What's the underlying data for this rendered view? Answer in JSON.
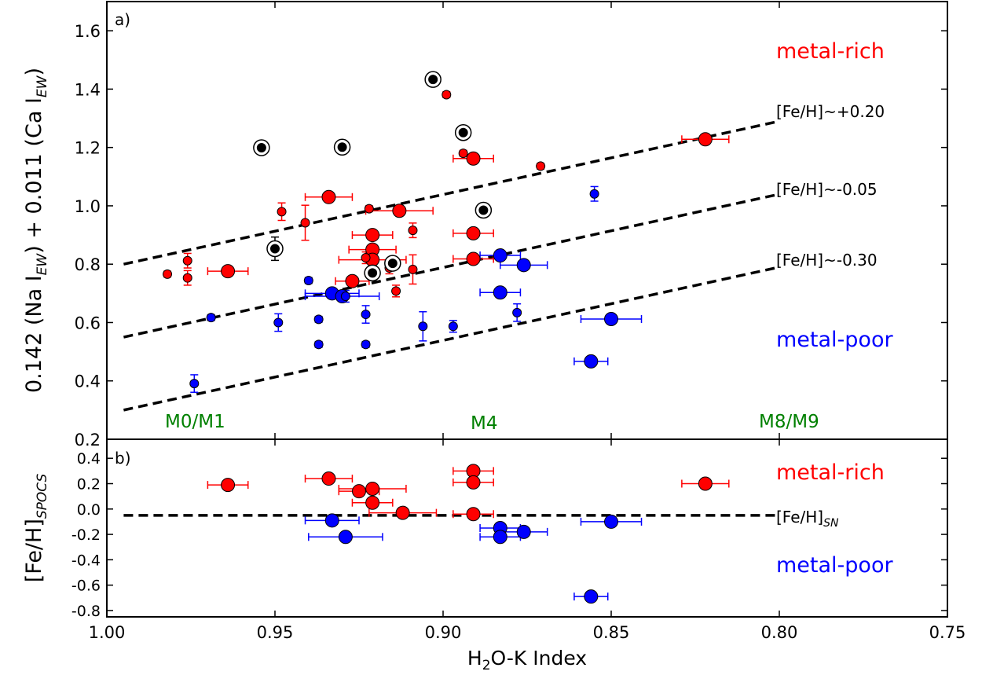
{
  "chart_data": [
    {
      "type": "scatter",
      "panel_label": "a)",
      "title": "",
      "xlabel": "",
      "ylabel": "0.142 (Na I_EW) + 0.011 (Ca I_EW)",
      "ylabel_parts": {
        "a": "0.142 (Na I",
        "a_sub": "EW",
        "b": ") + 0.011 (Ca I",
        "b_sub": "EW",
        "c": ")"
      },
      "xlim": [
        1.0,
        0.75
      ],
      "ylim": [
        0.2,
        1.7
      ],
      "x_reversed": true,
      "yticks": [
        "0.2",
        "0.4",
        "0.6",
        "0.8",
        "1.0",
        "1.2",
        "1.4",
        "1.6"
      ],
      "ytick_values": [
        0.2,
        0.4,
        0.6,
        0.8,
        1.0,
        1.2,
        1.4,
        1.6
      ],
      "xtick_values": [
        1.0,
        0.95,
        0.9,
        0.85,
        0.8,
        0.75
      ],
      "grid": false,
      "colors": {
        "metal_rich": "#ff0000",
        "metal_poor": "#0000ff",
        "calibrator": "#000000",
        "sptype": "#008000"
      },
      "annotations": {
        "metal_rich": "metal-rich",
        "metal_poor": "metal-poor",
        "line_labels": [
          "[Fe/H]~+0.20",
          "[Fe/H]~-0.05",
          "[Fe/H]~-0.30"
        ],
        "sptypes": [
          "M0/M1",
          "M4",
          "M8/M9"
        ]
      },
      "dashed_lines": [
        {
          "label": "[Fe/H]~+0.20",
          "x0": 0.995,
          "y0": 0.8,
          "x1": 0.8,
          "y1": 1.29
        },
        {
          "label": "[Fe/H]~-0.05",
          "x0": 0.995,
          "y0": 0.55,
          "x1": 0.8,
          "y1": 1.04
        },
        {
          "label": "[Fe/H]~-0.30",
          "x0": 0.995,
          "y0": 0.3,
          "x1": 0.8,
          "y1": 0.79
        }
      ],
      "series": [
        {
          "name": "metal-rich calibrators",
          "marker": "large",
          "color": "#ff0000",
          "points": [
            {
              "x": 0.964,
              "y": 0.776,
              "xerr": 0.006,
              "yerr": 0.0
            },
            {
              "x": 0.934,
              "y": 1.03,
              "xerr": 0.007,
              "yerr": 0.0
            },
            {
              "x": 0.927,
              "y": 0.742,
              "xerr": 0.005,
              "yerr": 0.0
            },
            {
              "x": 0.921,
              "y": 0.9,
              "xerr": 0.006,
              "yerr": 0.0
            },
            {
              "x": 0.921,
              "y": 0.85,
              "xerr": 0.007,
              "yerr": 0.0
            },
            {
              "x": 0.921,
              "y": 0.815,
              "xerr": 0.01,
              "yerr": 0.0
            },
            {
              "x": 0.913,
              "y": 0.983,
              "xerr": 0.01,
              "yerr": 0.0
            },
            {
              "x": 0.891,
              "y": 1.162,
              "xerr": 0.006,
              "yerr": 0.0
            },
            {
              "x": 0.891,
              "y": 0.906,
              "xerr": 0.006,
              "yerr": 0.0
            },
            {
              "x": 0.891,
              "y": 0.818,
              "xerr": 0.006,
              "yerr": 0.0
            },
            {
              "x": 0.822,
              "y": 1.228,
              "xerr": 0.007,
              "yerr": 0.0
            }
          ]
        },
        {
          "name": "metal-poor calibrators",
          "marker": "large",
          "color": "#0000ff",
          "points": [
            {
              "x": 0.933,
              "y": 0.7,
              "xerr": 0.008,
              "yerr": 0.0
            },
            {
              "x": 0.93,
              "y": 0.69,
              "xerr": 0.011,
              "yerr": 0.0
            },
            {
              "x": 0.883,
              "y": 0.83,
              "xerr": 0.006,
              "yerr": 0.0
            },
            {
              "x": 0.883,
              "y": 0.703,
              "xerr": 0.006,
              "yerr": 0.0
            },
            {
              "x": 0.876,
              "y": 0.797,
              "xerr": 0.007,
              "yerr": 0.0
            },
            {
              "x": 0.85,
              "y": 0.612,
              "xerr": 0.009,
              "yerr": 0.0
            },
            {
              "x": 0.856,
              "y": 0.467,
              "xerr": 0.005,
              "yerr": 0.0
            }
          ]
        },
        {
          "name": "metal-rich stars",
          "marker": "small",
          "color": "#ff0000",
          "points": [
            {
              "x": 0.982,
              "y": 0.766,
              "xerr": 0.0,
              "yerr": 0.01
            },
            {
              "x": 0.976,
              "y": 0.812,
              "xerr": 0.0,
              "yerr": 0.025
            },
            {
              "x": 0.976,
              "y": 0.753,
              "xerr": 0.0,
              "yerr": 0.025
            },
            {
              "x": 0.948,
              "y": 0.98,
              "xerr": 0.0,
              "yerr": 0.03
            },
            {
              "x": 0.941,
              "y": 0.942,
              "xerr": 0.0,
              "yerr": 0.06
            },
            {
              "x": 0.923,
              "y": 0.822,
              "xerr": 0.0,
              "yerr": 0.02
            },
            {
              "x": 0.922,
              "y": 0.99,
              "xerr": 0.0,
              "yerr": 0.01
            },
            {
              "x": 0.916,
              "y": 0.787,
              "xerr": 0.0,
              "yerr": 0.02
            },
            {
              "x": 0.914,
              "y": 0.708,
              "xerr": 0.0,
              "yerr": 0.02
            },
            {
              "x": 0.909,
              "y": 0.782,
              "xerr": 0.0,
              "yerr": 0.05
            },
            {
              "x": 0.909,
              "y": 0.916,
              "xerr": 0.0,
              "yerr": 0.025
            },
            {
              "x": 0.899,
              "y": 1.381,
              "xerr": 0.0,
              "yerr": 0.01
            },
            {
              "x": 0.894,
              "y": 1.18,
              "xerr": 0.0,
              "yerr": 0.01
            },
            {
              "x": 0.871,
              "y": 1.136,
              "xerr": 0.0,
              "yerr": 0.01
            }
          ]
        },
        {
          "name": "metal-poor stars",
          "marker": "small",
          "color": "#0000ff",
          "points": [
            {
              "x": 0.974,
              "y": 0.391,
              "xerr": 0.0,
              "yerr": 0.03
            },
            {
              "x": 0.969,
              "y": 0.617,
              "xerr": 0.0,
              "yerr": 0.01
            },
            {
              "x": 0.949,
              "y": 0.6,
              "xerr": 0.0,
              "yerr": 0.03
            },
            {
              "x": 0.94,
              "y": 0.744,
              "xerr": 0.0,
              "yerr": 0.01
            },
            {
              "x": 0.937,
              "y": 0.611,
              "xerr": 0.0,
              "yerr": 0.01
            },
            {
              "x": 0.937,
              "y": 0.525,
              "xerr": 0.0,
              "yerr": 0.01
            },
            {
              "x": 0.929,
              "y": 0.69,
              "xerr": 0.0,
              "yerr": 0.02
            },
            {
              "x": 0.923,
              "y": 0.628,
              "xerr": 0.0,
              "yerr": 0.03
            },
            {
              "x": 0.923,
              "y": 0.525,
              "xerr": 0.0,
              "yerr": 0.01
            },
            {
              "x": 0.906,
              "y": 0.587,
              "xerr": 0.0,
              "yerr": 0.05
            },
            {
              "x": 0.897,
              "y": 0.587,
              "xerr": 0.0,
              "yerr": 0.02
            },
            {
              "x": 0.878,
              "y": 0.634,
              "xerr": 0.0,
              "yerr": 0.03
            },
            {
              "x": 0.855,
              "y": 1.041,
              "xerr": 0.0,
              "yerr": 0.025
            }
          ]
        },
        {
          "name": "circled stars",
          "marker": "circled",
          "color": "#000000",
          "points": [
            {
              "x": 0.954,
              "y": 1.199,
              "xerr": 0.0,
              "yerr": 0.01
            },
            {
              "x": 0.95,
              "y": 0.853,
              "xerr": 0.0,
              "yerr": 0.04
            },
            {
              "x": 0.93,
              "y": 1.201,
              "xerr": 0.0,
              "yerr": 0.02
            },
            {
              "x": 0.921,
              "y": 0.77,
              "xerr": 0.0,
              "yerr": 0.02
            },
            {
              "x": 0.915,
              "y": 0.803,
              "xerr": 0.0,
              "yerr": 0.02
            },
            {
              "x": 0.903,
              "y": 1.433,
              "xerr": 0.0,
              "yerr": 0.015
            },
            {
              "x": 0.894,
              "y": 1.251,
              "xerr": 0.0,
              "yerr": 0.01
            },
            {
              "x": 0.888,
              "y": 0.985,
              "xerr": 0.0,
              "yerr": 0.01
            }
          ]
        }
      ]
    },
    {
      "type": "scatter",
      "panel_label": "b)",
      "title": "",
      "xlabel": "H2O-K Index",
      "xlabel_parts": {
        "a": "H",
        "a_sub": "2",
        "b": "O-K Index"
      },
      "ylabel": "[Fe/H]_SPOCS",
      "ylabel_parts": {
        "a": "[Fe/H]",
        "a_sub": "SPOCS"
      },
      "xlim": [
        1.0,
        0.75
      ],
      "ylim": [
        -0.85,
        0.55
      ],
      "x_reversed": true,
      "xticks": [
        "1.00",
        "0.95",
        "0.90",
        "0.85",
        "0.80",
        "0.75"
      ],
      "xtick_values": [
        1.0,
        0.95,
        0.9,
        0.85,
        0.8,
        0.75
      ],
      "yticks": [
        "0.4",
        "0.2",
        "0.0",
        "-0.2",
        "-0.4",
        "-0.6",
        "-0.8"
      ],
      "ytick_values": [
        0.4,
        0.2,
        0.0,
        -0.2,
        -0.4,
        -0.6,
        -0.8
      ],
      "grid": false,
      "annotations": {
        "metal_rich": "metal-rich",
        "metal_poor": "metal-poor",
        "ref_label": "[Fe/H]",
        "ref_label_sub": "SN"
      },
      "reference_line": {
        "y": -0.05
      },
      "series": [
        {
          "name": "metal-rich",
          "color": "#ff0000",
          "points": [
            {
              "x": 0.964,
              "y": 0.19,
              "xerr": 0.006
            },
            {
              "x": 0.934,
              "y": 0.24,
              "xerr": 0.007
            },
            {
              "x": 0.925,
              "y": 0.14,
              "xerr": 0.006
            },
            {
              "x": 0.921,
              "y": 0.16,
              "xerr": 0.01
            },
            {
              "x": 0.921,
              "y": 0.05,
              "xerr": 0.006
            },
            {
              "x": 0.912,
              "y": -0.03,
              "xerr": 0.01
            },
            {
              "x": 0.891,
              "y": 0.3,
              "xerr": 0.006
            },
            {
              "x": 0.891,
              "y": 0.21,
              "xerr": 0.006
            },
            {
              "x": 0.891,
              "y": -0.04,
              "xerr": 0.006
            },
            {
              "x": 0.822,
              "y": 0.2,
              "xerr": 0.007
            }
          ]
        },
        {
          "name": "metal-poor",
          "color": "#0000ff",
          "points": [
            {
              "x": 0.933,
              "y": -0.09,
              "xerr": 0.008
            },
            {
              "x": 0.929,
              "y": -0.22,
              "xerr": 0.011
            },
            {
              "x": 0.883,
              "y": -0.15,
              "xerr": 0.006
            },
            {
              "x": 0.883,
              "y": -0.22,
              "xerr": 0.006
            },
            {
              "x": 0.876,
              "y": -0.18,
              "xerr": 0.007
            },
            {
              "x": 0.85,
              "y": -0.1,
              "xerr": 0.009
            },
            {
              "x": 0.856,
              "y": -0.69,
              "xerr": 0.005
            }
          ]
        }
      ]
    }
  ]
}
